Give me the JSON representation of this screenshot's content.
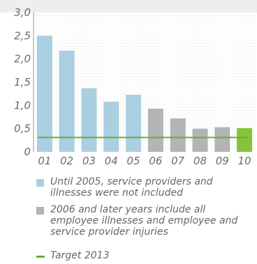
{
  "chart_data": {
    "type": "bar",
    "categories": [
      "01",
      "02",
      "03",
      "04",
      "05",
      "06",
      "07",
      "08",
      "09",
      "10"
    ],
    "values": [
      2.5,
      2.18,
      1.37,
      1.08,
      1.23,
      0.93,
      0.72,
      0.5,
      0.53,
      0.51
    ],
    "y_ticks": [
      "0",
      "0,5",
      "1,0",
      "1,5",
      "2,0",
      "2,5",
      "3,0"
    ],
    "ylim": [
      0,
      3.0
    ],
    "target": 0.31,
    "colors": {
      "until_2005": "#a9cfe1",
      "from_2006": "#b4b4b4",
      "latest": "#86c23a",
      "target": "#6aab3a",
      "grid": "#d9d9d9",
      "header": "#eeeeee"
    },
    "grid": true
  },
  "legend": {
    "items": [
      {
        "text": "Until 2005, service providers and illnesses were not included",
        "color": "#a9cfe1",
        "kind": "square"
      },
      {
        "text": "2006 and later years include all employee illnesses and employee and service provider injuries",
        "color": "#b4b4b4",
        "kind": "square"
      },
      {
        "text": "Target 2013",
        "color": "#6aab3a",
        "kind": "line"
      }
    ]
  }
}
